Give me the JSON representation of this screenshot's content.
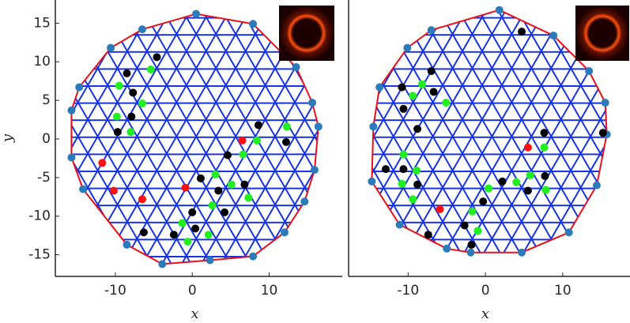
{
  "chart_data": [
    {
      "type": "scatter",
      "xlabel": "x",
      "ylabel": "y",
      "xlim": [
        -17.8,
        19.5
      ],
      "ylim": [
        -17.8,
        18
      ],
      "xticks": [
        -10,
        0,
        10
      ],
      "yticks": [
        -15,
        -10,
        -5,
        0,
        5,
        10,
        15
      ],
      "mesh_color": "#1530e0",
      "series": [
        {
          "color": "#2b7bba",
          "outline_color": "#e8101a",
          "x": [
            0.5,
            7.9,
            13.5,
            15.6,
            16.4,
            15.9,
            14.6,
            12.0,
            7.9,
            2.3,
            -3.9,
            -8.5,
            -14.2,
            -15.7,
            -15.7,
            -14.7,
            -10.6,
            -6.5
          ],
          "values": [
            16.2,
            14.9,
            9.3,
            4.7,
            1.6,
            -4.0,
            -8.1,
            -12.1,
            -15.2,
            -15.7,
            -16.2,
            -13.7,
            -6.5,
            -2.4,
            3.7,
            6.7,
            11.8,
            14.2
          ]
        },
        {
          "color": "#000000",
          "x": [
            -8.5,
            -4.6,
            -7.7,
            -7.9,
            -9.7,
            8.6,
            12.2,
            4.6,
            1.1,
            3.4,
            6.8,
            4.2,
            0,
            0.4,
            -2.4,
            -6.3
          ],
          "values": [
            8.5,
            10.6,
            6.0,
            2.9,
            0.9,
            1.8,
            -0.4,
            -2.1,
            -5.1,
            -6.7,
            -5.9,
            -9.5,
            -9.5,
            -11.6,
            -12.4,
            -12.1
          ]
        },
        {
          "color": "#22ee22",
          "x": [
            -9.5,
            -5.4,
            -6.5,
            -9.8,
            -8.0,
            12.3,
            8.4,
            6.6,
            3.0,
            5.1,
            7.3,
            2.6,
            -1.3,
            2.1,
            -0.6
          ],
          "values": [
            6.9,
            9.0,
            4.6,
            2.9,
            0.9,
            1.6,
            -0.2,
            -2.0,
            -4.6,
            -5.9,
            -7.6,
            -8.6,
            -10.9,
            -12.4,
            -13.3
          ]
        },
        {
          "color": "#ff1010",
          "x": [
            -11.7,
            -10.2,
            -6.5,
            -0.9,
            6.5
          ],
          "values": [
            -3.1,
            -6.7,
            -7.8,
            -6.3,
            -0.2
          ]
        }
      ]
    },
    {
      "type": "scatter",
      "xlabel": "x",
      "xlim": [
        -17.7,
        18.7
      ],
      "ylim": [
        -17.8,
        18
      ],
      "xticks": [
        -10,
        0,
        10
      ],
      "mesh_color": "#1530e0",
      "series": [
        {
          "color": "#2b7bba",
          "outline_color": "#e8101a",
          "x": [
            1.8,
            8.8,
            13.4,
            15.5,
            15.7,
            14.4,
            10.8,
            4.7,
            -1.9,
            -5.0,
            -11.1,
            -14.7,
            -14.5,
            -13.7,
            -10.1,
            -7.0
          ],
          "values": [
            16.7,
            13.4,
            8.8,
            4.7,
            0.6,
            -6.0,
            -12.1,
            -14.7,
            -14.7,
            -14.2,
            -11.1,
            -5.5,
            1.6,
            6.7,
            11.8,
            14.1
          ]
        },
        {
          "color": "#000000",
          "x": [
            -10.8,
            -10.6,
            -7.0,
            -6.7,
            -8.8,
            -12.9,
            -10.6,
            -8.8,
            4.7,
            7.6,
            7.7,
            15.2,
            2.2,
            5.5,
            -0.3,
            -2.7,
            -1.8,
            -7.4
          ],
          "values": [
            6.7,
            3.9,
            8.8,
            6.1,
            1.3,
            -3.9,
            -3.9,
            -5.9,
            13.9,
            0.8,
            -4.8,
            0.8,
            -5.5,
            -6.7,
            -8.1,
            -11.2,
            -13.7,
            -12.4
          ]
        },
        {
          "color": "#22ee22",
          "x": [
            -8.2,
            -9.4,
            -5.1,
            -10.6,
            -8.9,
            -10.8,
            -9.4,
            7.6,
            5.8,
            4.0,
            7.8,
            0.4,
            -1.7,
            -1.0
          ],
          "values": [
            7.1,
            5.6,
            4.7,
            -2.0,
            -4.1,
            -5.8,
            -7.8,
            -1.1,
            -4.7,
            -5.6,
            -6.6,
            -6.4,
            -9.4,
            -11.9
          ]
        },
        {
          "color": "#ff1010",
          "x": [
            5.5,
            -5.9
          ],
          "values": [
            -1.1,
            -9.1
          ]
        }
      ]
    }
  ]
}
